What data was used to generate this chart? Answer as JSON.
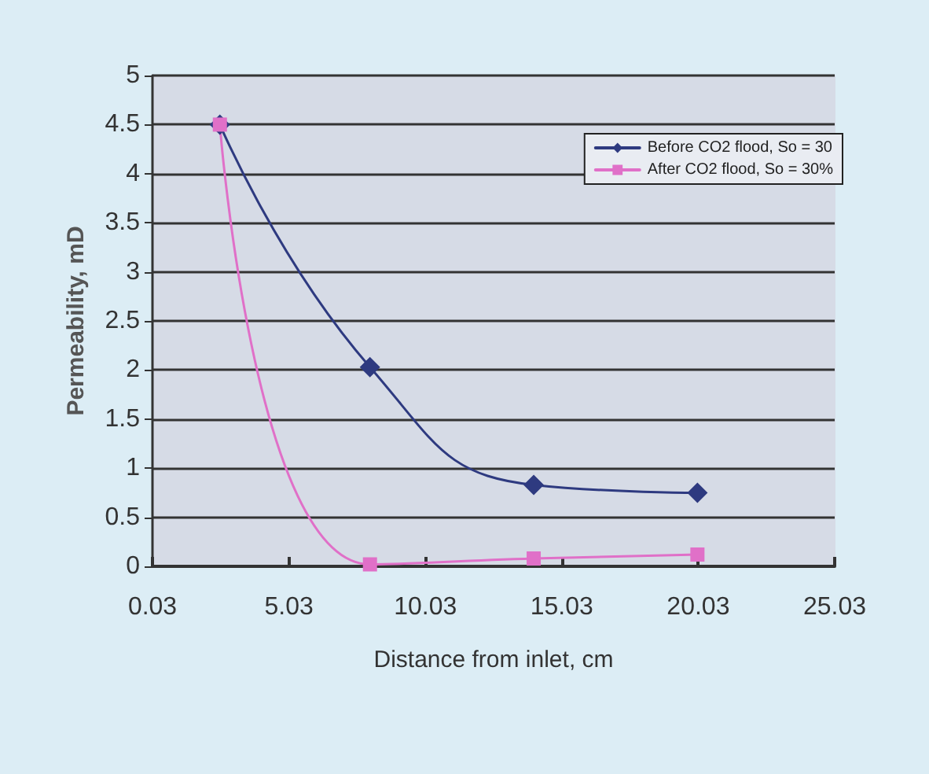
{
  "chart_data": {
    "type": "line",
    "xlabel": "Distance from inlet, cm",
    "ylabel": "Permeability, mD",
    "xlim": [
      0.03,
      25.03
    ],
    "xticks": [
      0.03,
      5.03,
      10.03,
      15.03,
      20.03,
      25.03
    ],
    "ylim": [
      0,
      5
    ],
    "yticks": [
      0,
      0.5,
      1,
      1.5,
      2,
      2.5,
      3,
      3.5,
      4,
      4.5,
      5
    ],
    "grid": "y",
    "legend": "top right",
    "line_style": "solid",
    "series": [
      {
        "name": "Before CO2 flood, So = 30",
        "color": "#2e3a80",
        "marker": "diamond",
        "x": [
          2.5,
          8,
          14,
          20
        ],
        "values": [
          4.5,
          2.03,
          0.83,
          0.75
        ]
      },
      {
        "name": "After CO2 flood, So = 30%",
        "color": "#e070c8",
        "marker": "square",
        "x": [
          2.5,
          8,
          14,
          20
        ],
        "values": [
          4.5,
          0.02,
          0.08,
          0.12
        ]
      }
    ]
  }
}
